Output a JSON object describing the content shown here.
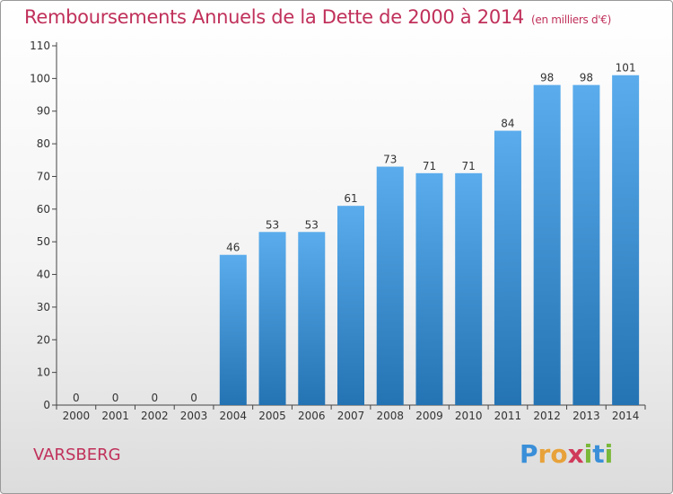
{
  "chart_data": {
    "type": "bar",
    "title": "Remboursements Annuels de la Dette de 2000 à 2014",
    "unit_note": "(en milliers d'€)",
    "categories": [
      "2000",
      "2001",
      "2002",
      "2003",
      "2004",
      "2005",
      "2006",
      "2007",
      "2008",
      "2009",
      "2010",
      "2011",
      "2012",
      "2013",
      "2014"
    ],
    "values": [
      0,
      0,
      0,
      0,
      46,
      53,
      53,
      61,
      73,
      71,
      71,
      84,
      98,
      98,
      101
    ],
    "ylim": [
      0,
      110
    ],
    "yticks": [
      0,
      10,
      20,
      30,
      40,
      50,
      60,
      70,
      80,
      90,
      100,
      110
    ],
    "grid": false,
    "bar_color_top": "#5aacec",
    "bar_color_bottom": "#2473b3"
  },
  "commune": "VARSBERG",
  "logo": {
    "letters": [
      "P",
      "r",
      "o",
      "x",
      "i",
      "t",
      "i"
    ],
    "colors": [
      "#3a8fd8",
      "#e8a23a",
      "#e8a23a",
      "#d03a5a",
      "#7ab83a",
      "#3a8fd8",
      "#7ab83a"
    ]
  }
}
